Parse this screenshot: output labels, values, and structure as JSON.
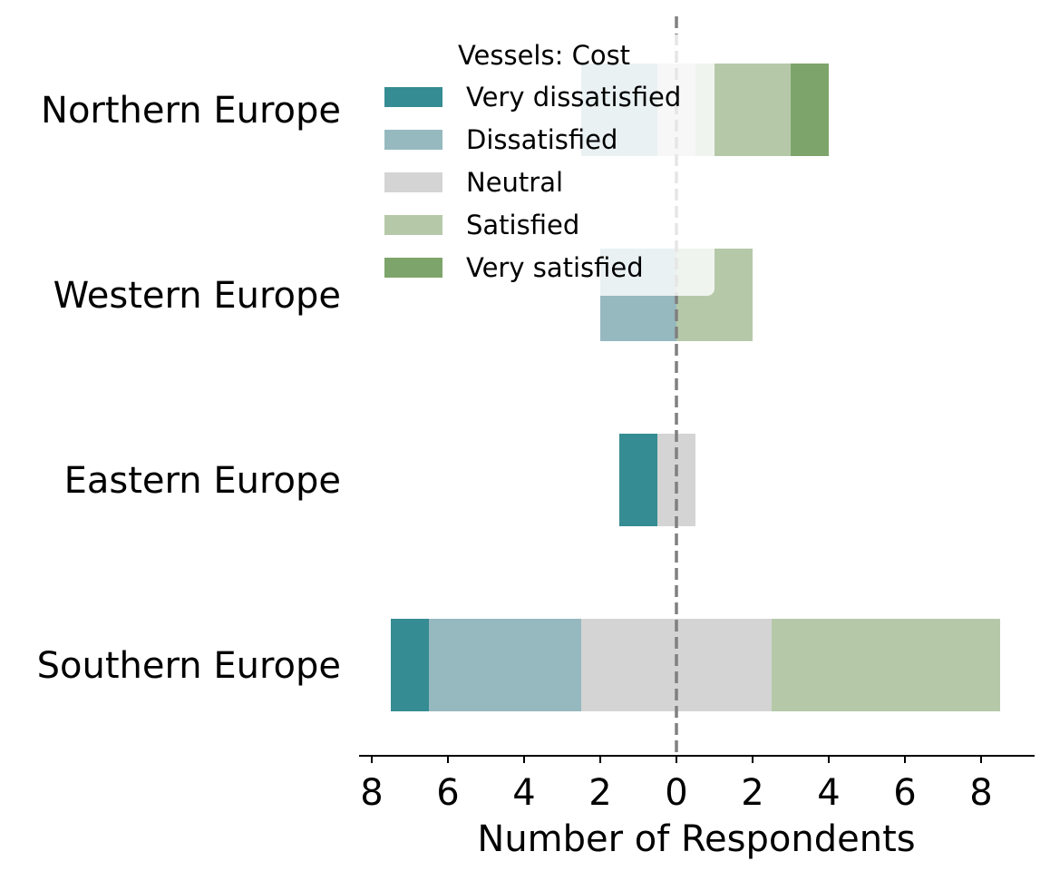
{
  "chart_data": {
    "type": "bar",
    "orientation": "horizontal",
    "layout": "diverging-stacked",
    "xlabel": "Number of Respondents",
    "xlim": [
      -8.5,
      9.5
    ],
    "xticks": [
      -8,
      -6,
      -4,
      -2,
      0,
      2,
      4,
      6,
      8
    ],
    "xtick_labels": [
      "8",
      "6",
      "4",
      "2",
      "0",
      "2",
      "4",
      "6",
      "8"
    ],
    "center_line": "dashed at 0",
    "categories": [
      "Northern Europe",
      "Western Europe",
      "Eastern Europe",
      "Southern Europe"
    ],
    "series": [
      {
        "name": "Very dissatisfied",
        "color": "#358c92",
        "values": [
          0,
          0,
          1,
          1
        ]
      },
      {
        "name": "Dissatisfied",
        "color": "#96b9bf",
        "values": [
          2,
          2,
          0,
          4
        ]
      },
      {
        "name": "Neutral",
        "color": "#d4d4d4",
        "values": [
          1,
          0,
          1,
          5
        ]
      },
      {
        "name": "Satisfied",
        "color": "#b5c9a9",
        "values": [
          2.5,
          2,
          0,
          6
        ]
      },
      {
        "name": "Very satisfied",
        "color": "#7da56b",
        "values": [
          1,
          0,
          0,
          0
        ]
      }
    ],
    "legend": {
      "title": "Vessels: Cost",
      "placement": "upper-center"
    }
  }
}
